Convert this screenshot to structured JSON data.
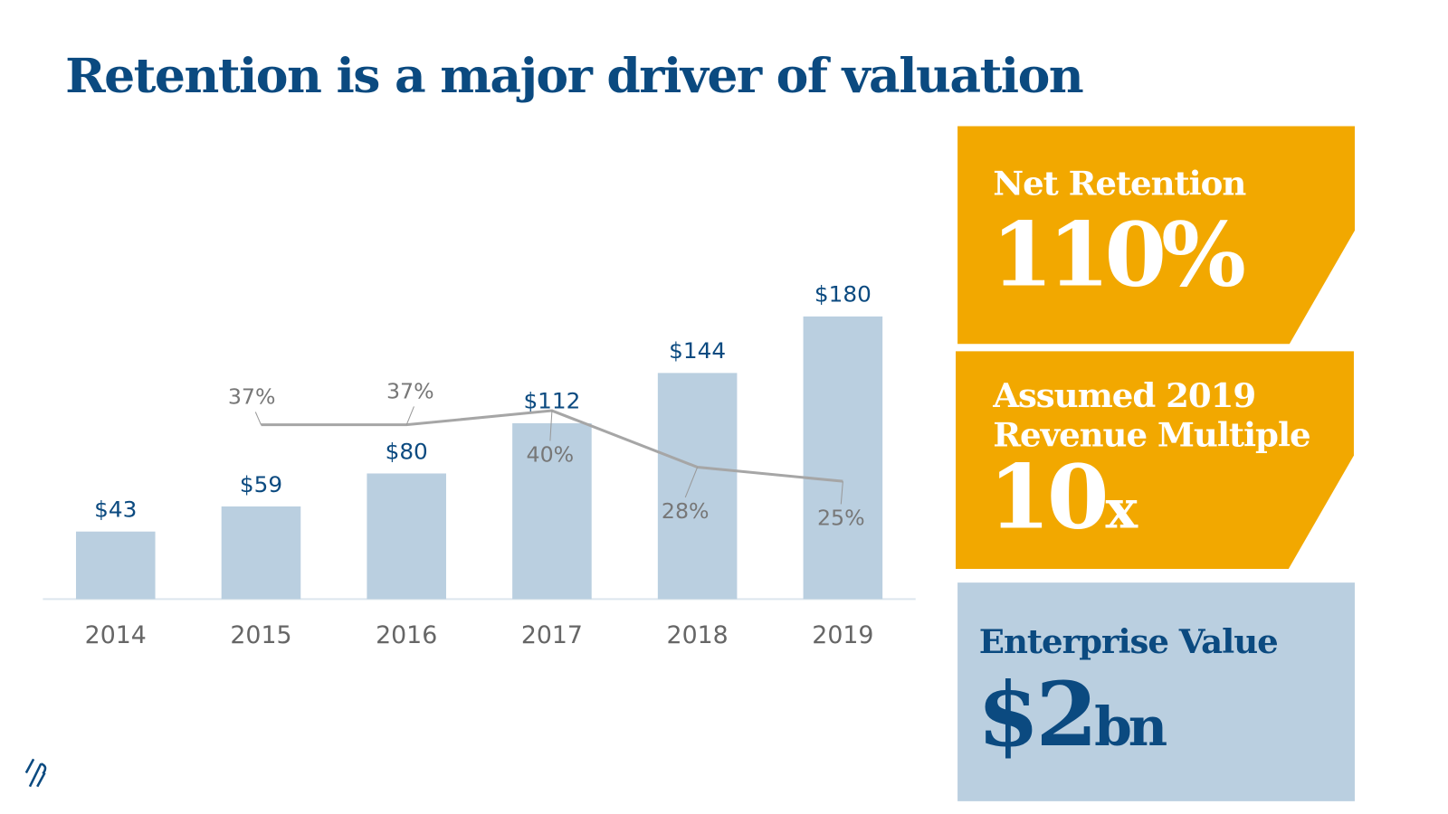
{
  "title": "Retention is a major driver of valuation",
  "chart_data": {
    "type": "bar",
    "categories": [
      "2014",
      "2015",
      "2016",
      "2017",
      "2018",
      "2019"
    ],
    "ylim": [
      0,
      300
    ],
    "y2lim": [
      0,
      100
    ],
    "series": [
      {
        "type": "bar",
        "color": "#bacfe0",
        "values": [
          43,
          59,
          80,
          112,
          144,
          180
        ],
        "value_labels": [
          "$43",
          "$59",
          "$80",
          "$112",
          "$144",
          "$180"
        ]
      },
      {
        "type": "line",
        "axis": "y2",
        "color": "#a6a6a6",
        "values": [
          null,
          37,
          37,
          40,
          28,
          25
        ],
        "value_labels": [
          null,
          "37%",
          "37%",
          "40%",
          "28%",
          "25%"
        ]
      }
    ]
  },
  "panels": [
    {
      "label": [
        "Net Retention"
      ],
      "value": "110%"
    },
    {
      "label": [
        "Assumed 2019",
        "Revenue Multiple"
      ],
      "value": "10",
      "unit": "x"
    },
    {
      "label": [
        "Enterprise Value"
      ],
      "value": "$2",
      "unit": "bn"
    }
  ]
}
